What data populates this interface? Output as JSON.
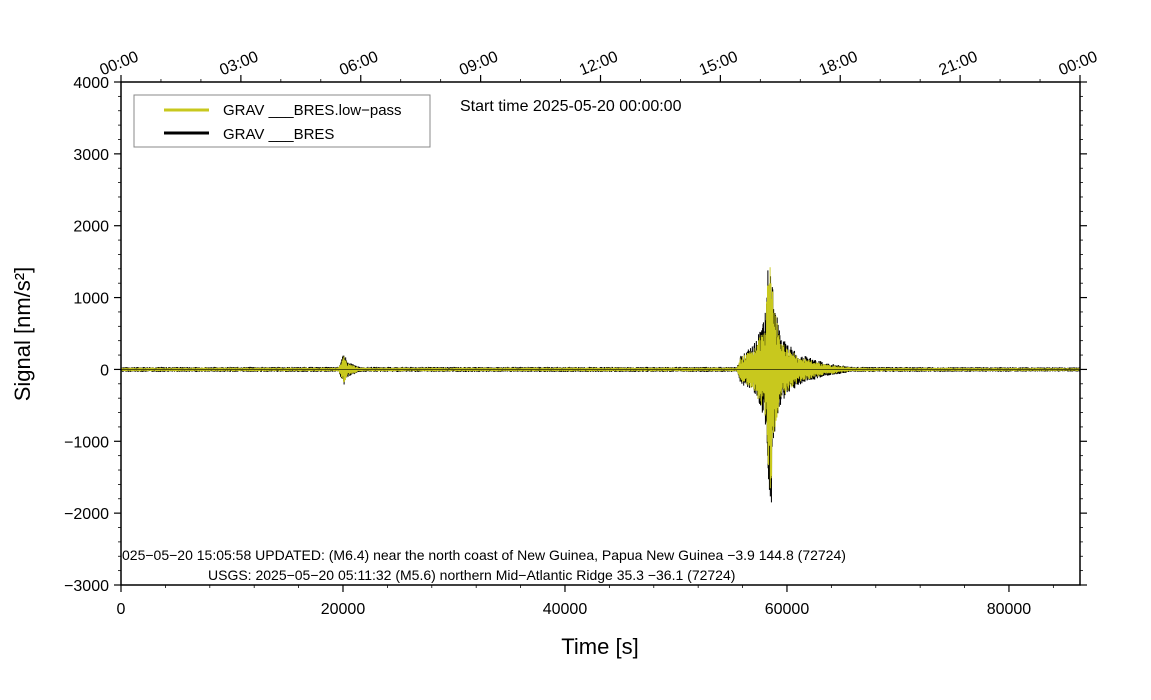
{
  "chart_data": {
    "type": "line",
    "xlabel": "Time [s]",
    "ylabel": "Signal [nm/s²]",
    "xlim": [
      0,
      86400
    ],
    "ylim": [
      -3000,
      4000
    ],
    "x_ticks": [
      0,
      20000,
      40000,
      60000,
      80000
    ],
    "x_tick_labels": [
      "0",
      "20000",
      "40000",
      "60000",
      "80000"
    ],
    "y_ticks": [
      -3000,
      -2000,
      -1000,
      0,
      1000,
      2000,
      3000,
      4000
    ],
    "y_tick_labels": [
      "−3000",
      "−2000",
      "−1000",
      "0",
      "1000",
      "2000",
      "3000",
      "4000"
    ],
    "top_ticks": [
      0,
      10800,
      21600,
      32400,
      43200,
      54000,
      64800,
      75600,
      86400
    ],
    "top_tick_labels": [
      "00:00",
      "03:00",
      "06:00",
      "09:00",
      "12:00",
      "15:00",
      "18:00",
      "21:00",
      "00:00"
    ],
    "start_time": "Start time 2025-05-20 00:00:00",
    "legend_position": "top-left",
    "grid": false,
    "series": [
      {
        "name": "GRAV ___BRES.low−pass",
        "color": "#c8c81e",
        "envelope": [
          {
            "t": 0,
            "amp": 25
          },
          {
            "t": 19600,
            "amp": 25
          },
          {
            "t": 19900,
            "amp": 120
          },
          {
            "t": 20100,
            "amp": 200
          },
          {
            "t": 20400,
            "amp": 90
          },
          {
            "t": 21500,
            "amp": 25
          },
          {
            "t": 55500,
            "amp": 25
          },
          {
            "t": 55800,
            "amp": 160
          },
          {
            "t": 57000,
            "amp": 300
          },
          {
            "t": 58000,
            "amp": 600
          },
          {
            "t": 58500,
            "amp": 1950
          },
          {
            "t": 58800,
            "amp": 900
          },
          {
            "t": 59500,
            "amp": 400
          },
          {
            "t": 61000,
            "amp": 180
          },
          {
            "t": 63500,
            "amp": 70
          },
          {
            "t": 66000,
            "amp": 25
          },
          {
            "t": 86400,
            "amp": 20
          }
        ]
      },
      {
        "name": "GRAV ___BRES",
        "color": "#000000",
        "envelope": [
          {
            "t": 0,
            "amp": 35
          },
          {
            "t": 19600,
            "amp": 35
          },
          {
            "t": 19900,
            "amp": 150
          },
          {
            "t": 20100,
            "amp": 240
          },
          {
            "t": 20400,
            "amp": 110
          },
          {
            "t": 21500,
            "amp": 35
          },
          {
            "t": 55500,
            "amp": 35
          },
          {
            "t": 55800,
            "amp": 190
          },
          {
            "t": 57000,
            "amp": 340
          },
          {
            "t": 58000,
            "amp": 700
          },
          {
            "t": 58500,
            "amp": 2050
          },
          {
            "t": 58800,
            "amp": 1000
          },
          {
            "t": 59500,
            "amp": 450
          },
          {
            "t": 61000,
            "amp": 220
          },
          {
            "t": 63500,
            "amp": 90
          },
          {
            "t": 66000,
            "amp": 35
          },
          {
            "t": 86400,
            "amp": 30
          }
        ]
      }
    ],
    "peaks": {
      "max": {
        "t": 58550,
        "value": 2080
      },
      "min": {
        "t": 58600,
        "value": -1850
      }
    },
    "annotations": [
      "025−05−20 15:05:58 UPDATED: (M6.4) near the north coast of New Guinea, Papua New Guinea −3.9 144.8 (72724)",
      "USGS: 2025−05−20 05:11:32 (M5.6) northern Mid−Atlantic Ridge 35.3 −36.1 (72724)"
    ]
  }
}
